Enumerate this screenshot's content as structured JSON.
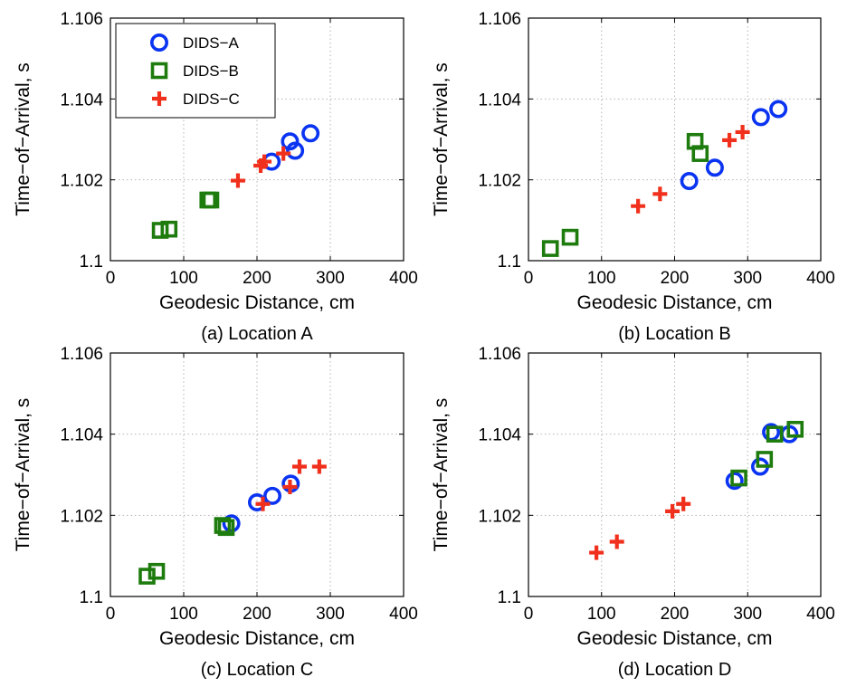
{
  "chart_data": [
    {
      "type": "scatter",
      "caption": "(a) Location A",
      "xlabel": "Geodesic Distance, cm",
      "ylabel": "Time−of−Arrival, s",
      "xlim": [
        0,
        400
      ],
      "ylim": [
        1.1,
        1.106
      ],
      "xticks": [
        "0",
        "100",
        "200",
        "300",
        "400"
      ],
      "yticks": [
        "1.1",
        "1.102",
        "1.104",
        "1.106"
      ],
      "grid": true,
      "legend": {
        "placement": "top-left",
        "entries": [
          "DIDS−A",
          "DIDS−B",
          "DIDS−C"
        ]
      },
      "series": [
        {
          "name": "DIDS−A",
          "marker": "circle",
          "color": "#0a34f2",
          "x": [
            220,
            245,
            252,
            273
          ],
          "y": [
            1.10245,
            1.10295,
            1.10272,
            1.10315
          ]
        },
        {
          "name": "DIDS−B",
          "marker": "square",
          "color": "#1e7c0e",
          "x": [
            68,
            80,
            133,
            137
          ],
          "y": [
            1.10075,
            1.10078,
            1.1015,
            1.1015
          ]
        },
        {
          "name": "DIDS−C",
          "marker": "plus",
          "color": "#f0301c",
          "x": [
            174,
            205,
            210,
            236
          ],
          "y": [
            1.10198,
            1.10235,
            1.10245,
            1.10265
          ]
        }
      ]
    },
    {
      "type": "scatter",
      "caption": "(b) Location B",
      "xlabel": "Geodesic Distance, cm",
      "ylabel": "Time−of−Arrival, s",
      "xlim": [
        0,
        400
      ],
      "ylim": [
        1.1,
        1.106
      ],
      "xticks": [
        "0",
        "100",
        "200",
        "300",
        "400"
      ],
      "yticks": [
        "1.1",
        "1.102",
        "1.104",
        "1.106"
      ],
      "grid": true,
      "series": [
        {
          "name": "DIDS−A",
          "marker": "circle",
          "color": "#0a34f2",
          "x": [
            220,
            255,
            318,
            342
          ],
          "y": [
            1.10197,
            1.1023,
            1.10355,
            1.10375
          ]
        },
        {
          "name": "DIDS−B",
          "marker": "square",
          "color": "#1e7c0e",
          "x": [
            30,
            57,
            228,
            235
          ],
          "y": [
            1.1003,
            1.10058,
            1.10295,
            1.10265
          ]
        },
        {
          "name": "DIDS−C",
          "marker": "plus",
          "color": "#f0301c",
          "x": [
            150,
            180,
            275,
            293
          ],
          "y": [
            1.10135,
            1.10165,
            1.10298,
            1.10318
          ]
        }
      ]
    },
    {
      "type": "scatter",
      "caption": "(c) Location C",
      "xlabel": "Geodesic Distance, cm",
      "ylabel": "Time−of−Arrival, s",
      "xlim": [
        0,
        400
      ],
      "ylim": [
        1.1,
        1.106
      ],
      "xticks": [
        "0",
        "100",
        "200",
        "300",
        "400"
      ],
      "yticks": [
        "1.1",
        "1.102",
        "1.104",
        "1.106"
      ],
      "grid": true,
      "series": [
        {
          "name": "DIDS−A",
          "marker": "circle",
          "color": "#0a34f2",
          "x": [
            165,
            200,
            221,
            246
          ],
          "y": [
            1.1018,
            1.10232,
            1.10248,
            1.10278
          ]
        },
        {
          "name": "DIDS−B",
          "marker": "square",
          "color": "#1e7c0e",
          "x": [
            50,
            63,
            153,
            158
          ],
          "y": [
            1.1005,
            1.10062,
            1.10175,
            1.1017
          ]
        },
        {
          "name": "DIDS−C",
          "marker": "plus",
          "color": "#f0301c",
          "x": [
            208,
            245,
            258,
            285
          ],
          "y": [
            1.10228,
            1.1027,
            1.1032,
            1.1032
          ]
        }
      ]
    },
    {
      "type": "scatter",
      "caption": "(d) Location D",
      "xlabel": "Geodesic Distance, cm",
      "ylabel": "Time−of−Arrival, s",
      "xlim": [
        0,
        400
      ],
      "ylim": [
        1.1,
        1.106
      ],
      "xticks": [
        "0",
        "100",
        "200",
        "300",
        "400"
      ],
      "yticks": [
        "1.1",
        "1.102",
        "1.104",
        "1.106"
      ],
      "grid": true,
      "series": [
        {
          "name": "DIDS−A",
          "marker": "circle",
          "color": "#0a34f2",
          "x": [
            282,
            317,
            332,
            357
          ],
          "y": [
            1.10285,
            1.1032,
            1.10405,
            1.104
          ]
        },
        {
          "name": "DIDS−B",
          "marker": "square",
          "color": "#1e7c0e",
          "x": [
            288,
            323,
            337,
            365
          ],
          "y": [
            1.10292,
            1.10338,
            1.104,
            1.10412
          ]
        },
        {
          "name": "DIDS−C",
          "marker": "plus",
          "color": "#f0301c",
          "x": [
            93,
            121,
            197,
            212
          ],
          "y": [
            1.10108,
            1.10135,
            1.1021,
            1.10228
          ]
        }
      ]
    }
  ]
}
